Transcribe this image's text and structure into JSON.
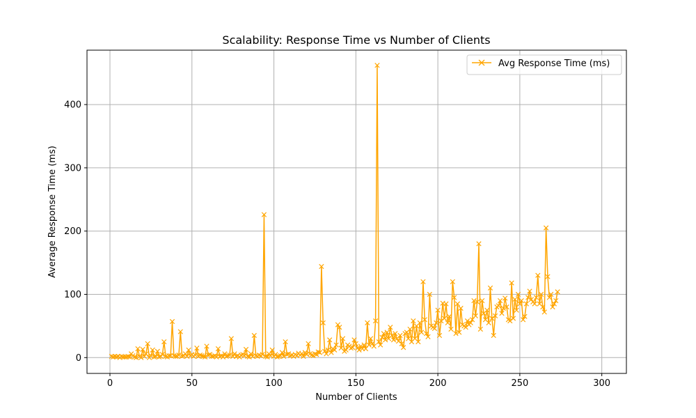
{
  "chart_data": {
    "type": "line",
    "title": "Scalability: Response Time vs Number of Clients",
    "xlabel": "Number of Clients",
    "ylabel": "Average Response Time (ms)",
    "xlim": [
      -14,
      315
    ],
    "ylim": [
      -25,
      486
    ],
    "xticks": [
      0,
      50,
      100,
      150,
      200,
      250,
      300
    ],
    "yticks": [
      0,
      100,
      200,
      300,
      400
    ],
    "grid": true,
    "legend_position": "top-right",
    "series_color": "#ffa500",
    "marker": "x",
    "series": [
      {
        "name": "Avg Response Time (ms)",
        "x_start": 1,
        "x_step": 1,
        "values": [
          2,
          1,
          2,
          1,
          2,
          0,
          2,
          1,
          1,
          1,
          2,
          1,
          6,
          3,
          1,
          0,
          14,
          2,
          0,
          13,
          2,
          6,
          22,
          0,
          3,
          12,
          1,
          2,
          10,
          1,
          2,
          5,
          25,
          2,
          1,
          3,
          3,
          57,
          3,
          2,
          2,
          4,
          41,
          2,
          3,
          6,
          2,
          12,
          3,
          5,
          2,
          4,
          15,
          2,
          4,
          3,
          2,
          1,
          18,
          4,
          5,
          2,
          2,
          3,
          1,
          14,
          2,
          3,
          1,
          6,
          2,
          3,
          4,
          30,
          2,
          6,
          2,
          3,
          1,
          4,
          5,
          3,
          13,
          2,
          1,
          6,
          2,
          35,
          3,
          2,
          4,
          3,
          5,
          226,
          2,
          1,
          6,
          3,
          12,
          2,
          5,
          1,
          2,
          3,
          8,
          2,
          25,
          5,
          6,
          3,
          4,
          2,
          5,
          3,
          7,
          4,
          6,
          2,
          8,
          5,
          22,
          6,
          4,
          3,
          6,
          5,
          9,
          8,
          144,
          55,
          10,
          6,
          12,
          28,
          8,
          14,
          12,
          20,
          52,
          48,
          15,
          30,
          10,
          12,
          20,
          18,
          15,
          16,
          28,
          22,
          15,
          12,
          18,
          14,
          20,
          14,
          55,
          20,
          30,
          22,
          18,
          58,
          462,
          25,
          20,
          32,
          38,
          28,
          40,
          30,
          48,
          35,
          28,
          38,
          30,
          26,
          35,
          22,
          16,
          38,
          40,
          30,
          45,
          25,
          58,
          30,
          50,
          25,
          55,
          40,
          120,
          60,
          38,
          33,
          100,
          50,
          48,
          46,
          55,
          75,
          35,
          58,
          86,
          62,
          85,
          55,
          65,
          45,
          120,
          95,
          38,
          85,
          40,
          78,
          52,
          50,
          48,
          58,
          52,
          55,
          60,
          90,
          66,
          88,
          180,
          45,
          90,
          70,
          60,
          75,
          55,
          110,
          62,
          35,
          66,
          80,
          82,
          90,
          70,
          78,
          94,
          80,
          60,
          58,
          118,
          62,
          92,
          75,
          100,
          85,
          90,
          60,
          65,
          85,
          95,
          105,
          92,
          88,
          85,
          95,
          130,
          85,
          100,
          80,
          72,
          205,
          128,
          95,
          100,
          80,
          85,
          90,
          104
        ]
      }
    ]
  }
}
